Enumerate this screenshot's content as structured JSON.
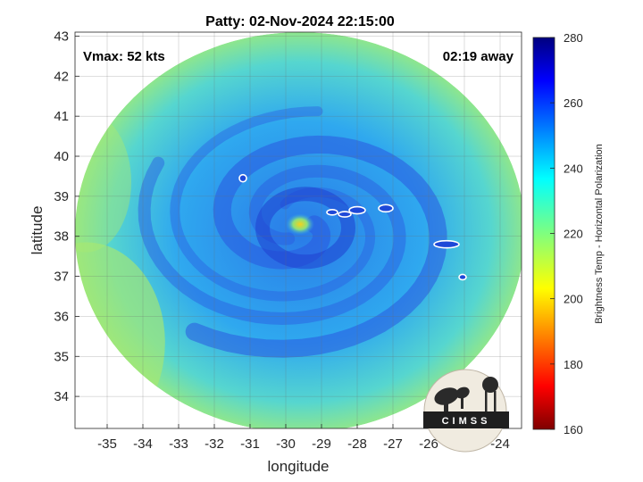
{
  "chart_data": {
    "type": "heatmap",
    "title": "Patty: 02-Nov-2024 22:15:00",
    "xlabel": "longitude",
    "ylabel": "latitude",
    "xlim": [
      -35.9,
      -23.4
    ],
    "ylim": [
      33.2,
      43.1
    ],
    "xticks": [
      -35,
      -34,
      -33,
      -32,
      -31,
      -30,
      -29,
      -28,
      -27,
      -26,
      -25,
      -24
    ],
    "yticks": [
      34,
      35,
      36,
      37,
      38,
      39,
      40,
      41,
      42,
      43
    ],
    "grid": true,
    "annotations": {
      "vmax": "Vmax: 52 kts",
      "time_away": "02:19 away"
    },
    "colorbar": {
      "label": "Brightness Temp - Horizontal Polarization",
      "range": [
        160,
        280
      ],
      "ticks": [
        160,
        180,
        200,
        220,
        240,
        260,
        280
      ],
      "colormap": "jet"
    },
    "storm_center": {
      "lon": -29.6,
      "lat": 38.3
    },
    "scan_swath": {
      "center_lon": -29.6,
      "center_lat": 38.1,
      "radius_lon": 6.3,
      "radius_lat": 5.0
    },
    "islands": [
      {
        "lon": -31.2,
        "lat": 39.45
      },
      {
        "lon": -28.7,
        "lat": 38.6
      },
      {
        "lon": -28.35,
        "lat": 38.55
      },
      {
        "lon": -28.0,
        "lat": 38.65
      },
      {
        "lon": -27.2,
        "lat": 38.7
      },
      {
        "lon": -25.5,
        "lat": 37.8
      },
      {
        "lon": -25.05,
        "lat": 36.98
      }
    ]
  },
  "logo": {
    "text": "CIMSS"
  },
  "colors": {
    "background_cool": "#2ba6f2",
    "rainband": "#2a58e0",
    "eye_warm": "#f5d21a",
    "outer_warm": "#a8e870"
  }
}
